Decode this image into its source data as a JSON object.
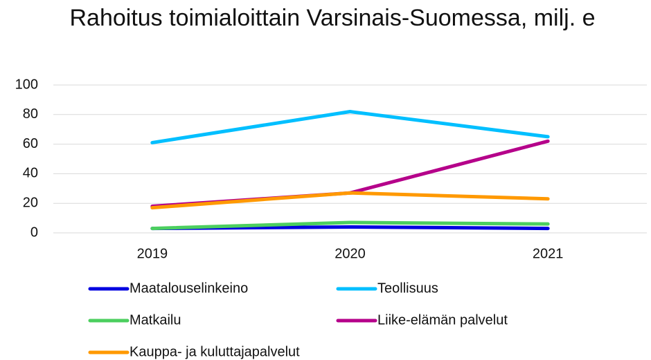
{
  "chart_data": {
    "type": "line",
    "title": "Rahoitus toimialoittain Varsinais-Suomessa, milj. e",
    "categories": [
      "2019",
      "2020",
      "2021"
    ],
    "series": [
      {
        "name": "Maatalouselinkeino",
        "color": "#0000e0",
        "values": [
          3,
          4,
          3
        ]
      },
      {
        "name": "Teollisuus",
        "color": "#00bfff",
        "values": [
          61,
          82,
          65
        ]
      },
      {
        "name": "Matkailu",
        "color": "#4ccf5f",
        "values": [
          3,
          7,
          6
        ]
      },
      {
        "name": "Liike-elämän palvelut",
        "color": "#b5008a",
        "values": [
          18,
          27,
          62
        ]
      },
      {
        "name": "Kauppa- ja kuluttajapalvelut",
        "color": "#ff9900",
        "values": [
          17,
          27,
          23
        ]
      }
    ],
    "ylim": [
      0,
      100
    ],
    "yticks": [
      0,
      20,
      40,
      60,
      80,
      100
    ],
    "grid": true,
    "legend": "bottom"
  }
}
